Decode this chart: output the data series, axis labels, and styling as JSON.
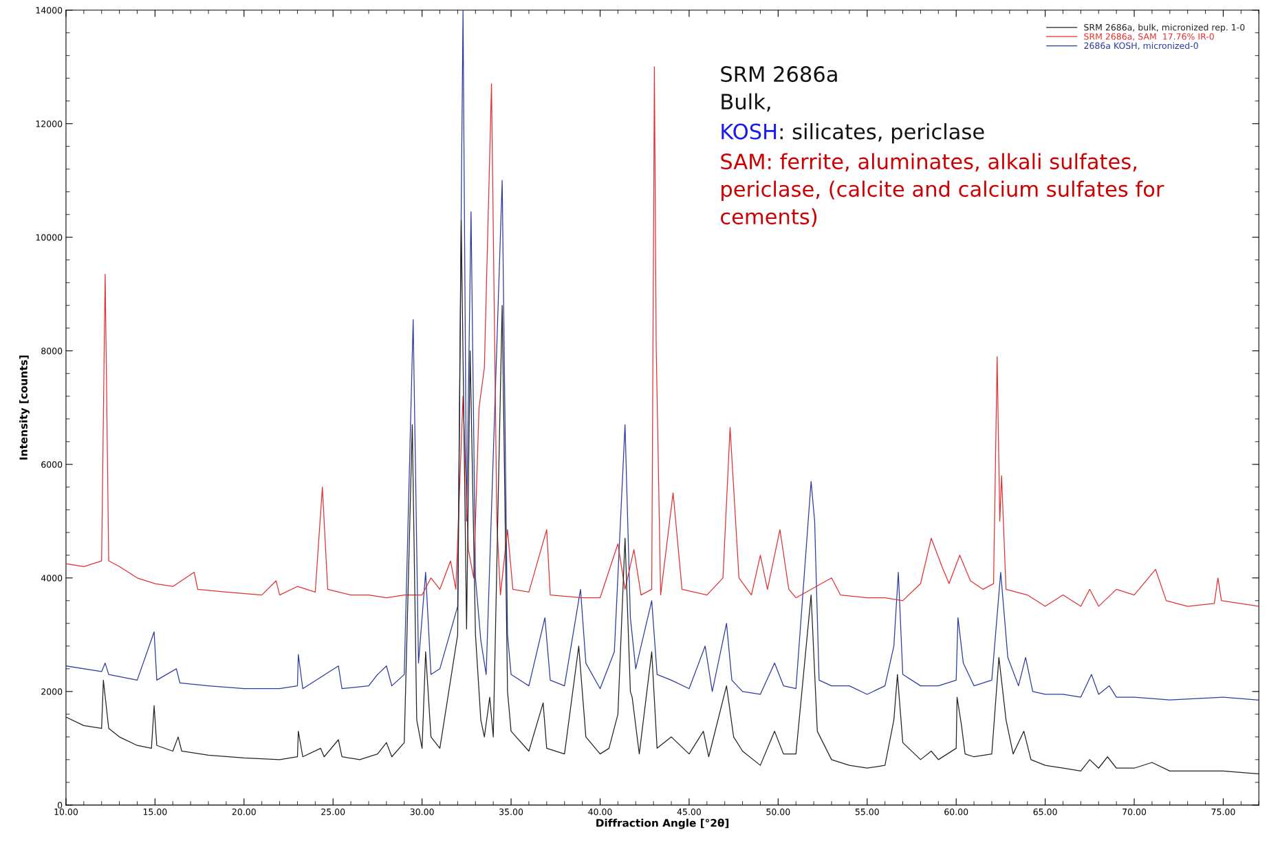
{
  "chart_data": {
    "type": "line",
    "xlabel": "Diffraction Angle [°2θ]",
    "ylabel": "Intensity [counts]",
    "xlim": [
      10,
      77
    ],
    "ylim": [
      0,
      14000
    ],
    "xticks": [
      {
        "value": 10,
        "label": "10.00"
      },
      {
        "value": 15,
        "label": "15.00"
      },
      {
        "value": 20,
        "label": "20.00"
      },
      {
        "value": 25,
        "label": "25.00"
      },
      {
        "value": 30,
        "label": "30.00"
      },
      {
        "value": 35,
        "label": "35.00"
      },
      {
        "value": 40,
        "label": "40.00"
      },
      {
        "value": 45,
        "label": "45.00"
      },
      {
        "value": 50,
        "label": "50.00"
      },
      {
        "value": 55,
        "label": "55.00"
      },
      {
        "value": 60,
        "label": "60.00"
      },
      {
        "value": 65,
        "label": "65.00"
      },
      {
        "value": 70,
        "label": "70.00"
      },
      {
        "value": 75,
        "label": "75.00"
      }
    ],
    "yticks": [
      0,
      2000,
      4000,
      6000,
      8000,
      10000,
      12000,
      14000
    ],
    "grid": false,
    "legend": "top right",
    "marker": "none",
    "line_style": "solid",
    "annotations": [
      "SRM 2686a\nBulk,",
      "KOSH",
      ": silicates, periclase",
      "SAM: ferrite, aluminates, alkali sulfates,\npericlase, (calcite and calcium sulfates for\ncements)"
    ],
    "series": [
      {
        "name": "SRM 2686a, bulk, micronized rep. 1-0",
        "color": "#222222",
        "x": [
          10,
          11,
          12,
          12.1,
          12.4,
          13,
          14,
          14.8,
          14.95,
          15.1,
          16,
          16.3,
          16.5,
          18,
          20,
          22,
          23,
          23.05,
          23.3,
          24.3,
          24.5,
          25.3,
          25.5,
          26.5,
          27.5,
          28,
          28.3,
          29,
          29.45,
          29.7,
          30,
          30.2,
          30.5,
          31,
          32,
          32.2,
          32.5,
          32.7,
          33,
          33.3,
          33.5,
          33.8,
          34,
          34.5,
          34.8,
          35,
          36,
          36.8,
          37,
          38,
          38.8,
          39.2,
          40,
          40.5,
          41,
          41.4,
          41.7,
          41.8,
          42.2,
          42.9,
          43.2,
          44,
          45,
          45.8,
          46.1,
          47.1,
          47.5,
          48,
          49,
          49.8,
          50.3,
          51,
          51.85,
          52.2,
          53,
          54,
          55,
          56,
          56.5,
          56.7,
          57,
          58,
          58.6,
          59,
          60,
          60.05,
          60.3,
          60.5,
          61,
          62,
          62.4,
          62.8,
          63.2,
          63.8,
          64.2,
          65,
          66,
          67,
          67.5,
          68,
          68.5,
          69,
          70,
          71,
          72,
          73,
          75,
          77
        ],
        "values": [
          1550,
          1400,
          1350,
          2200,
          1350,
          1200,
          1050,
          1000,
          1750,
          1050,
          950,
          1200,
          950,
          880,
          830,
          800,
          850,
          1300,
          850,
          1000,
          850,
          1150,
          850,
          800,
          900,
          1100,
          850,
          1100,
          6700,
          1500,
          1000,
          2700,
          1200,
          1000,
          3000,
          10300,
          3100,
          8000,
          3000,
          1500,
          1200,
          1900,
          1200,
          8800,
          2000,
          1300,
          950,
          1800,
          1000,
          900,
          2800,
          1200,
          900,
          1000,
          1600,
          4700,
          2000,
          1900,
          900,
          2700,
          1000,
          1200,
          900,
          1300,
          850,
          2100,
          1200,
          950,
          700,
          1300,
          900,
          900,
          3700,
          1300,
          800,
          700,
          650,
          700,
          1500,
          2300,
          1100,
          800,
          950,
          800,
          1000,
          1900,
          1400,
          900,
          850,
          900,
          2600,
          1500,
          900,
          1300,
          800,
          700,
          650,
          600,
          800,
          650,
          850,
          650,
          650,
          750,
          600,
          600,
          600,
          550
        ]
      },
      {
        "name": "SRM 2686a, SAM  17.76% IR-0",
        "color": "#e03030",
        "x": [
          10,
          11,
          12,
          12.2,
          12.4,
          13,
          14,
          15,
          16,
          17.2,
          17.4,
          19,
          21,
          21.8,
          22,
          23,
          24,
          24.4,
          24.7,
          26,
          27,
          28,
          29,
          30,
          30.5,
          31,
          31.6,
          31.9,
          32.3,
          32.6,
          32.9,
          33.2,
          33.5,
          33.9,
          34.2,
          34.4,
          34.8,
          35.1,
          36,
          37,
          37.2,
          39,
          40,
          41,
          41.4,
          41.9,
          42.3,
          42.9,
          43.05,
          43.15,
          43.4,
          44.1,
          44.6,
          46,
          46.9,
          47.3,
          47.8,
          48.5,
          49,
          49.4,
          50.1,
          50.6,
          51,
          53,
          53.5,
          55,
          56,
          57,
          58,
          58.6,
          59.2,
          59.6,
          60.2,
          60.8,
          61.5,
          62.1,
          62.3,
          62.45,
          62.55,
          62.8,
          64,
          65,
          66,
          67,
          67.5,
          68,
          69,
          70,
          71.2,
          71.8,
          73,
          74.5,
          74.7,
          74.9,
          77
        ],
        "values": [
          4250,
          4200,
          4300,
          9350,
          4300,
          4200,
          4000,
          3900,
          3850,
          4100,
          3800,
          3750,
          3700,
          3950,
          3700,
          3850,
          3750,
          5600,
          3800,
          3700,
          3700,
          3650,
          3700,
          3700,
          4000,
          3800,
          4300,
          3800,
          7200,
          4500,
          4000,
          7000,
          7700,
          12700,
          5000,
          3700,
          4850,
          3800,
          3750,
          4850,
          3700,
          3650,
          3650,
          4600,
          3800,
          4500,
          3700,
          3800,
          13000,
          8100,
          3700,
          5500,
          3800,
          3700,
          4000,
          6650,
          4000,
          3700,
          4400,
          3800,
          4850,
          3800,
          3650,
          4000,
          3700,
          3650,
          3650,
          3600,
          3900,
          4700,
          4200,
          3900,
          4400,
          3950,
          3800,
          3900,
          7900,
          5000,
          5800,
          3800,
          3700,
          3500,
          3700,
          3500,
          3800,
          3500,
          3800,
          3700,
          4150,
          3600,
          3500,
          3550,
          4000,
          3600,
          3500
        ]
      },
      {
        "name": "2686a KOSH, micronized-0",
        "color": "#2a3aa0",
        "x": [
          10,
          12,
          12.2,
          12.4,
          14,
          14.95,
          15.1,
          16.2,
          16.4,
          18,
          20,
          22,
          23,
          23.05,
          23.3,
          25.3,
          25.5,
          27,
          27.5,
          28,
          28.3,
          29,
          29.5,
          29.8,
          30.2,
          30.5,
          31,
          32,
          32.3,
          32.5,
          32.75,
          33,
          33.3,
          33.6,
          34.5,
          34.8,
          35,
          36,
          36.9,
          37.2,
          38,
          38.9,
          39.2,
          40,
          40.8,
          41.4,
          41.7,
          42,
          42.9,
          43.2,
          44,
          45,
          45.9,
          46.3,
          47.1,
          47.4,
          48,
          49,
          49.8,
          50.3,
          51,
          51.85,
          52.05,
          52.3,
          53,
          54,
          55,
          56,
          56.5,
          56.75,
          57,
          58,
          59,
          60,
          60.1,
          60.4,
          61,
          62,
          62.5,
          62.9,
          63.5,
          63.9,
          64.3,
          65,
          66,
          67,
          67.6,
          68,
          68.6,
          69,
          70,
          72,
          75,
          77
        ],
        "values": [
          2450,
          2350,
          2500,
          2300,
          2200,
          3050,
          2200,
          2400,
          2150,
          2100,
          2050,
          2050,
          2100,
          2650,
          2050,
          2450,
          2050,
          2100,
          2300,
          2450,
          2100,
          2300,
          8550,
          2500,
          4100,
          2300,
          2400,
          3500,
          14000,
          5000,
          10450,
          4000,
          2900,
          2300,
          11000,
          3000,
          2300,
          2100,
          3300,
          2200,
          2100,
          3800,
          2500,
          2050,
          2700,
          6700,
          3300,
          2400,
          3600,
          2300,
          2200,
          2050,
          2800,
          2000,
          3200,
          2200,
          2000,
          1950,
          2500,
          2100,
          2050,
          5700,
          5000,
          2200,
          2100,
          2100,
          1950,
          2100,
          2800,
          4100,
          2300,
          2100,
          2100,
          2200,
          3300,
          2500,
          2100,
          2200,
          4100,
          2600,
          2100,
          2600,
          2000,
          1950,
          1950,
          1900,
          2300,
          1950,
          2100,
          1900,
          1900,
          1850,
          1900,
          1850
        ]
      }
    ]
  }
}
